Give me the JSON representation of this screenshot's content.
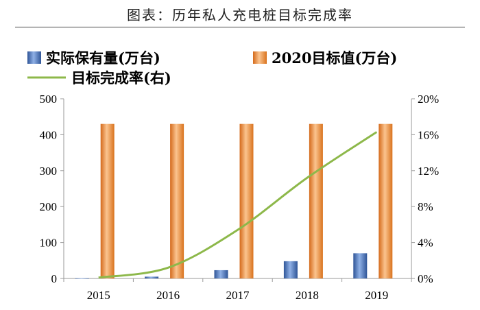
{
  "page_title": "图表：历年私人充电桩目标完成率",
  "chart_data": {
    "type": "bar",
    "categories": [
      "2015",
      "2016",
      "2017",
      "2018",
      "2019"
    ],
    "series": [
      {
        "name": "实际保有量(万台)",
        "type": "bar",
        "axis": "left",
        "values": [
          0.5,
          5,
          23,
          48,
          70
        ],
        "color": "#4472C4"
      },
      {
        "name": "2020目标值(万台)",
        "type": "bar",
        "axis": "left",
        "values": [
          430,
          430,
          430,
          430,
          430
        ],
        "color": "#ED7D31"
      },
      {
        "name": "目标完成率(右)",
        "type": "line",
        "axis": "right",
        "values": [
          0.1,
          1.2,
          5.4,
          11.2,
          16.3
        ],
        "color": "#8DB84A"
      }
    ],
    "y_left": {
      "ylim": [
        0,
        500
      ],
      "ticks": [
        "0",
        "100",
        "200",
        "300",
        "400",
        "500"
      ]
    },
    "y_right": {
      "ylim": [
        0,
        20
      ],
      "ticks": [
        "0%",
        "4%",
        "8%",
        "12%",
        "16%",
        "20%"
      ],
      "unit": "%"
    },
    "legend_placement": "top"
  }
}
